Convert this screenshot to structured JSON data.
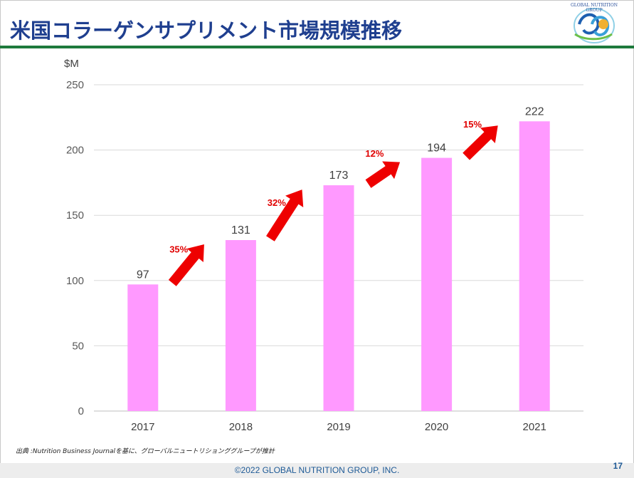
{
  "title": "米国コラーゲンサプリメント市場規模推移",
  "logo_text": "GLOBAL NUTRITION GROUP",
  "source": "出典 :Nutrition Business Journalを基に、グローバルニュートリションググループが推計",
  "copyright": "©2022 GLOBAL NUTRITION GROUP, INC.",
  "page_number": "17",
  "colors": {
    "title": "#1f3f8f",
    "rule": "#1e7a3c",
    "bar": "#ff99ff",
    "arrow": "#ee0000",
    "growth_label": "#e00000"
  },
  "chart_data": {
    "type": "bar",
    "title": "",
    "xlabel": "",
    "ylabel": "$M",
    "categories": [
      "2017",
      "2018",
      "2019",
      "2020",
      "2021"
    ],
    "values": [
      97,
      131,
      173,
      194,
      222
    ],
    "ylim": [
      0,
      250
    ],
    "yticks": [
      0,
      50,
      100,
      150,
      200,
      250
    ],
    "grid": true,
    "legend": "none",
    "annotations": [
      "35%",
      "32%",
      "12%",
      "15%"
    ]
  }
}
